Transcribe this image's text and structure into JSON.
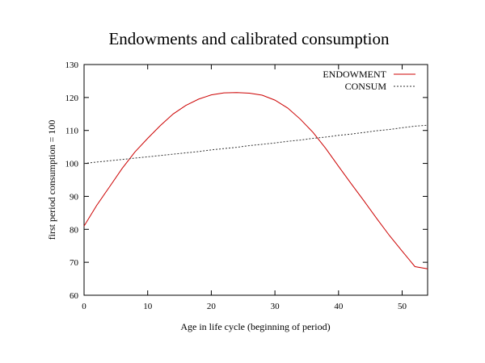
{
  "chart_data": {
    "type": "line",
    "title": "Endowments and calibrated consumption",
    "xlabel": "Age in life cycle (beginning of period)",
    "ylabel": "first period consumption = 100",
    "xlim": [
      0,
      54
    ],
    "ylim": [
      60,
      130
    ],
    "xticks": [
      0,
      10,
      20,
      30,
      40,
      50
    ],
    "yticks": [
      60,
      70,
      80,
      90,
      100,
      110,
      120,
      130
    ],
    "grid": false,
    "legend_position": "top-right",
    "x": [
      0,
      2,
      4,
      6,
      8,
      10,
      12,
      14,
      16,
      18,
      20,
      22,
      24,
      26,
      28,
      30,
      32,
      34,
      36,
      38,
      40,
      42,
      44,
      46,
      48,
      50,
      52,
      54
    ],
    "series": [
      {
        "name": "ENDOWMENT",
        "color": "#cc0000",
        "style": "solid",
        "values": [
          81,
          87.3,
          92.9,
          98.5,
          103.5,
          107.6,
          111.5,
          115,
          117.6,
          119.5,
          120.8,
          121.4,
          121.5,
          121.3,
          120.7,
          119.2,
          116.8,
          113.4,
          109.4,
          104.5,
          99.1,
          93.8,
          88.6,
          83.3,
          78.1,
          73.4,
          68.7,
          68
        ]
      },
      {
        "name": "CONSUM",
        "color": "#333333",
        "style": "dashed",
        "values": [
          100,
          100.4,
          100.8,
          101.2,
          101.6,
          102,
          102.4,
          102.8,
          103.2,
          103.6,
          104.1,
          104.5,
          104.9,
          105.4,
          105.8,
          106.2,
          106.7,
          107.1,
          107.6,
          108,
          108.5,
          108.9,
          109.4,
          109.9,
          110.3,
          110.8,
          111.3,
          111.6
        ]
      }
    ]
  }
}
